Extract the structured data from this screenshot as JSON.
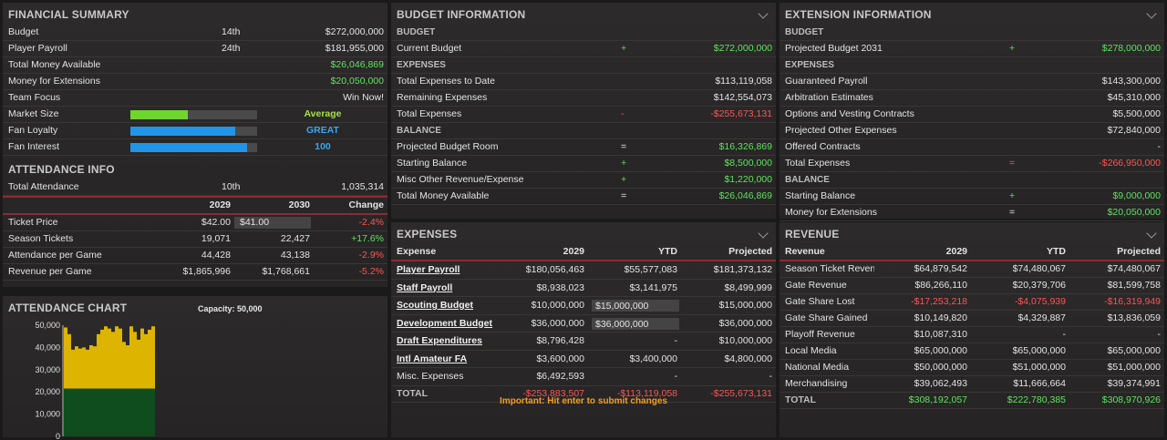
{
  "financial_summary": {
    "title": "FINANCIAL SUMMARY",
    "rows": [
      {
        "label": "Budget",
        "rank": "14th",
        "value": "$272,000,000"
      },
      {
        "label": "Player Payroll",
        "rank": "24th",
        "value": "$181,955,000"
      },
      {
        "label": "Total Money Available",
        "rank": "",
        "value": "$26,046,869"
      },
      {
        "label": "Money for Extensions",
        "rank": "",
        "value": "$20,050,000"
      },
      {
        "label": "Team Focus",
        "rank": "",
        "value": "Win Now!"
      }
    ],
    "bars": [
      {
        "label": "Market Size",
        "fill": 0.45,
        "color": "#6fd62c",
        "value": "Average"
      },
      {
        "label": "Fan Loyalty",
        "fill": 0.83,
        "color": "#2196e8",
        "value": "GREAT"
      },
      {
        "label": "Fan Interest",
        "fill": 0.92,
        "color": "#2196e8",
        "value": "100"
      }
    ]
  },
  "attendance_info": {
    "title": "ATTENDANCE INFO",
    "total": {
      "label": "Total Attendance",
      "rank": "10th",
      "value": "1,035,314"
    },
    "headers": {
      "y1": "2029",
      "y2": "2030",
      "chg": "Change"
    },
    "rows": [
      {
        "label": "Ticket Price",
        "y1": "$42.00",
        "y2": "$41.00",
        "chg": "-2.4%",
        "cls": "red"
      },
      {
        "label": "Season Tickets",
        "y1": "19,071",
        "y2": "22,427",
        "chg": "+17.6%",
        "cls": "green"
      },
      {
        "label": "Attendance per Game",
        "y1": "44,428",
        "y2": "43,138",
        "chg": "-2.9%",
        "cls": "red"
      },
      {
        "label": "Revenue per Game",
        "y1": "$1,865,996",
        "y2": "$1,768,661",
        "chg": "-5.2%",
        "cls": "red"
      }
    ]
  },
  "attendance_chart": {
    "title": "ATTENDANCE CHART",
    "capacity": "Capacity: 50,000"
  },
  "chart_data": {
    "type": "bar",
    "title": "",
    "ylim": [
      0,
      50000
    ],
    "yticks": [
      "50,000",
      "40,000",
      "30,000",
      "20,000",
      "10,000",
      "0"
    ],
    "tick_values": [
      50000,
      40000,
      30000,
      20000,
      10000,
      0
    ],
    "season_ticket_base": 21500,
    "values": [
      49000,
      46000,
      39000,
      40500,
      39500,
      40000,
      39000,
      41000,
      40500,
      46000,
      48000,
      49500,
      48500,
      47000,
      49500,
      48500,
      42500,
      41000,
      49500,
      47000,
      43500,
      48500,
      46000,
      48000,
      49500
    ]
  },
  "budget_information": {
    "title": "BUDGET INFORMATION",
    "sections": [
      {
        "name": "BUDGET",
        "rows": [
          {
            "label": "Current Budget",
            "op": "+",
            "value": "$272,000,000",
            "cls": "green"
          }
        ]
      },
      {
        "name": "EXPENSES",
        "rows": [
          {
            "label": "Total Expenses to Date",
            "op": "",
            "value": "$113,119,058",
            "cls": ""
          },
          {
            "label": "Remaining Expenses",
            "op": "",
            "value": "$142,554,073",
            "cls": ""
          },
          {
            "label": "Total Expenses",
            "op": "-",
            "value": "-$255,673,131",
            "cls": "red"
          }
        ]
      },
      {
        "name": "BALANCE",
        "rows": [
          {
            "label": "Projected Budget Room",
            "op": "=",
            "value": "$16,326,869",
            "cls": "green"
          },
          {
            "label": "Starting Balance",
            "op": "+",
            "value": "$8,500,000",
            "cls": "green"
          },
          {
            "label": "Misc Other Revenue/Expense",
            "op": "+",
            "value": "$1,220,000",
            "cls": "green"
          },
          {
            "label": "Total Money Available",
            "op": "=",
            "value": "$26,046,869",
            "cls": "green"
          }
        ]
      }
    ]
  },
  "extension_information": {
    "title": "EXTENSION INFORMATION",
    "sections": [
      {
        "name": "BUDGET",
        "rows": [
          {
            "label": "Projected Budget 2031",
            "op": "+",
            "value": "$278,000,000",
            "cls": "green"
          }
        ]
      },
      {
        "name": "EXPENSES",
        "rows": [
          {
            "label": "Guaranteed Payroll",
            "op": "",
            "value": "$143,300,000",
            "cls": ""
          },
          {
            "label": "Arbitration Estimates",
            "op": "",
            "value": "$45,310,000",
            "cls": ""
          },
          {
            "label": "Options and Vesting Contracts",
            "op": "",
            "value": "$5,500,000",
            "cls": ""
          },
          {
            "label": "Projected Other Expenses",
            "op": "",
            "value": "$72,840,000",
            "cls": ""
          },
          {
            "label": "Offered Contracts",
            "op": "",
            "value": "-",
            "cls": ""
          },
          {
            "label": "Total Expenses",
            "op": "=",
            "value": "-$266,950,000",
            "cls": "red"
          }
        ]
      },
      {
        "name": "BALANCE",
        "rows": [
          {
            "label": "Starting Balance",
            "op": "+",
            "value": "$9,000,000",
            "cls": "green"
          },
          {
            "label": "Money for Extensions",
            "op": "=",
            "value": "$20,050,000",
            "cls": "green"
          }
        ]
      }
    ]
  },
  "expenses": {
    "title": "EXPENSES",
    "headers": {
      "name": "Expense",
      "y": "2029",
      "ytd": "YTD",
      "proj": "Projected"
    },
    "rows": [
      {
        "name": "Player Payroll",
        "link": true,
        "y": "$180,056,463",
        "ytd": "$55,577,083",
        "proj": "$181,373,132",
        "input": false
      },
      {
        "name": "Staff Payroll",
        "link": true,
        "y": "$8,938,023",
        "ytd": "$3,141,975",
        "proj": "$8,499,999",
        "input": false
      },
      {
        "name": "Scouting Budget",
        "link": true,
        "y": "$10,000,000",
        "ytd": "$15,000,000",
        "proj": "$15,000,000",
        "input": true
      },
      {
        "name": "Development Budget",
        "link": true,
        "y": "$36,000,000",
        "ytd": "$36,000,000",
        "proj": "$36,000,000",
        "input": true
      },
      {
        "name": "Draft Expenditures",
        "link": true,
        "y": "$8,796,428",
        "ytd": "-",
        "proj": "$10,000,000",
        "input": false
      },
      {
        "name": "Intl Amateur FA",
        "link": true,
        "y": "$3,600,000",
        "ytd": "$3,400,000",
        "proj": "$4,800,000",
        "input": false
      },
      {
        "name": "Misc. Expenses",
        "link": false,
        "y": "$6,492,593",
        "ytd": "-",
        "proj": "-",
        "input": false
      }
    ],
    "total": {
      "name": "TOTAL",
      "y": "-$253,883,507",
      "ytd": "-$113,119,058",
      "proj": "-$255,673,131"
    },
    "notice": "Important: Hit enter to submit changes"
  },
  "revenue": {
    "title": "REVENUE",
    "headers": {
      "name": "Revenue",
      "y": "2029",
      "ytd": "YTD",
      "proj": "Projected"
    },
    "rows": [
      {
        "name": "Season Ticket Revenue",
        "y": "$64,879,542",
        "ytd": "$74,480,067",
        "proj": "$74,480,067",
        "cls": ""
      },
      {
        "name": "Gate Revenue",
        "y": "$86,266,110",
        "ytd": "$20,379,706",
        "proj": "$81,599,758",
        "cls": ""
      },
      {
        "name": "Gate Share Lost",
        "y": "-$17,253,218",
        "ytd": "-$4,075,939",
        "proj": "-$16,319,949",
        "cls": "red"
      },
      {
        "name": "Gate Share Gained",
        "y": "$10,149,820",
        "ytd": "$4,329,887",
        "proj": "$13,836,059",
        "cls": ""
      },
      {
        "name": "Playoff Revenue",
        "y": "$10,087,310",
        "ytd": "-",
        "proj": "-",
        "cls": ""
      },
      {
        "name": "Local Media",
        "y": "$65,000,000",
        "ytd": "$65,000,000",
        "proj": "$65,000,000",
        "cls": ""
      },
      {
        "name": "National Media",
        "y": "$50,000,000",
        "ytd": "$51,000,000",
        "proj": "$51,000,000",
        "cls": ""
      },
      {
        "name": "Merchandising",
        "y": "$39,062,493",
        "ytd": "$11,666,664",
        "proj": "$39,374,991",
        "cls": ""
      }
    ],
    "total": {
      "name": "TOTAL",
      "y": "$308,192,057",
      "ytd": "$222,780,385",
      "proj": "$308,970,926"
    }
  }
}
